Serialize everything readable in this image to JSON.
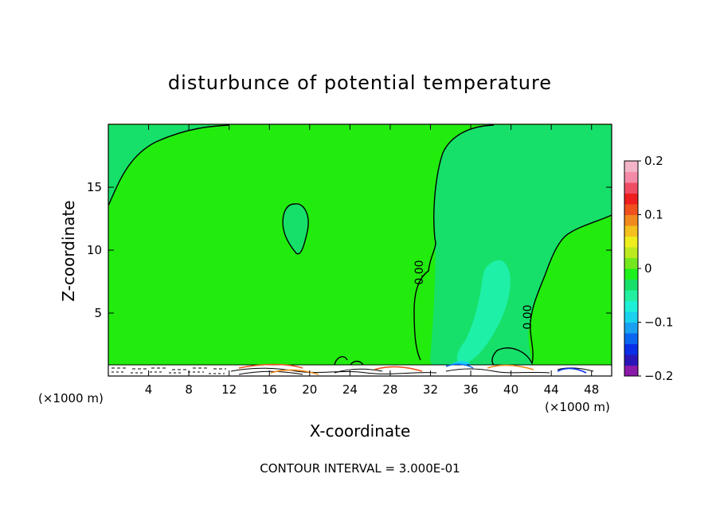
{
  "chart_data": {
    "type": "heatmap",
    "title": "disturbunce of potential temperature",
    "xlabel": "X-coordinate",
    "ylabel": "Z-coordinate",
    "x_unit": "(×1000 m)",
    "x_unit_right": "(×1000 m)",
    "xlim": [
      0,
      50
    ],
    "ylim": [
      0,
      20
    ],
    "x_ticks": [
      4,
      8,
      12,
      16,
      20,
      24,
      28,
      32,
      36,
      40,
      44,
      48
    ],
    "y_ticks": [
      5,
      10,
      15
    ],
    "contour_interval_text": "CONTOUR INTERVAL = 3.000E-01",
    "contour_labels": [
      {
        "text": "0.00",
        "x": 31.2,
        "z": 8.2
      },
      {
        "text": "0.00",
        "x": 41.8,
        "z": 4.6
      }
    ],
    "colorbar": {
      "min": -0.2,
      "max": 0.2,
      "tick_labels": [
        "0.2",
        "0.1",
        "0",
        "−0.1",
        "−0.2"
      ],
      "tick_values": [
        0.2,
        0.1,
        0,
        -0.1,
        -0.2
      ],
      "colors": [
        "#8a1aa8",
        "#2a16b8",
        "#0a2ee8",
        "#0a66f0",
        "#1aa0f0",
        "#1ad2ee",
        "#1ef0d8",
        "#22f0a0",
        "#16e06a",
        "#1ef01e",
        "#74e81e",
        "#bcea1e",
        "#eeee1e",
        "#f4c01e",
        "#f08a1e",
        "#f0501e",
        "#ee1e1e",
        "#f04c64",
        "#f48aa8",
        "#f4b4c8"
      ]
    },
    "field_color": "#22ec0e",
    "ground_top_z": 1.0
  }
}
